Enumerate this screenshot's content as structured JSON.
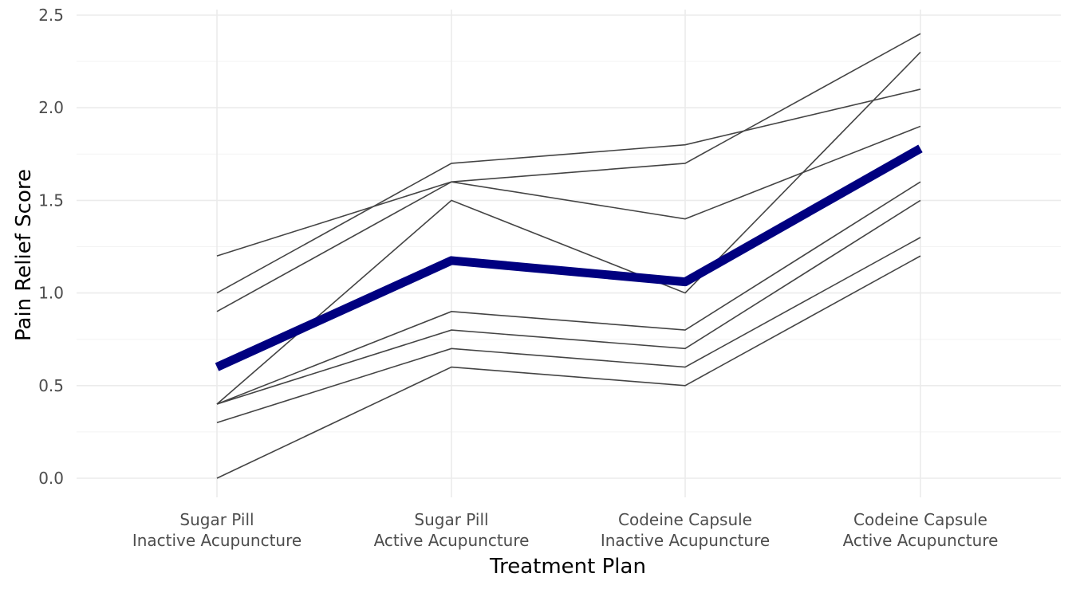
{
  "chart_data": {
    "type": "line",
    "title": "",
    "xlabel": "Treatment Plan",
    "ylabel": "Pain Relief Score",
    "categories": [
      [
        "Sugar Pill",
        "Inactive Acupuncture"
      ],
      [
        "Sugar Pill",
        "Active Acupuncture"
      ],
      [
        "Codeine Capsule",
        "Inactive Acupuncture"
      ],
      [
        "Codeine Capsule",
        "Active Acupuncture"
      ]
    ],
    "ylim": [
      -0.1,
      2.5
    ],
    "yticks": [
      "0.0",
      "0.5",
      "1.0",
      "1.5",
      "2.0",
      "2.5"
    ],
    "grid": true,
    "legend": "none",
    "series": [
      {
        "values": [
          0.0,
          0.6,
          0.5,
          1.2
        ]
      },
      {
        "values": [
          0.3,
          0.7,
          0.6,
          1.3
        ]
      },
      {
        "values": [
          0.4,
          0.8,
          0.7,
          1.5
        ]
      },
      {
        "values": [
          0.4,
          0.9,
          0.8,
          1.6
        ]
      },
      {
        "values": [
          0.4,
          1.5,
          1.0,
          2.3
        ]
      },
      {
        "values": [
          0.9,
          1.6,
          1.4,
          1.9
        ]
      },
      {
        "values": [
          1.0,
          1.7,
          1.8,
          2.1
        ]
      },
      {
        "values": [
          1.2,
          1.6,
          1.7,
          2.4
        ]
      }
    ],
    "mean_series": {
      "values": [
        0.6,
        1.175,
        1.06,
        1.78
      ]
    },
    "colors": {
      "individual": "#444444",
      "mean": "#000080"
    }
  }
}
